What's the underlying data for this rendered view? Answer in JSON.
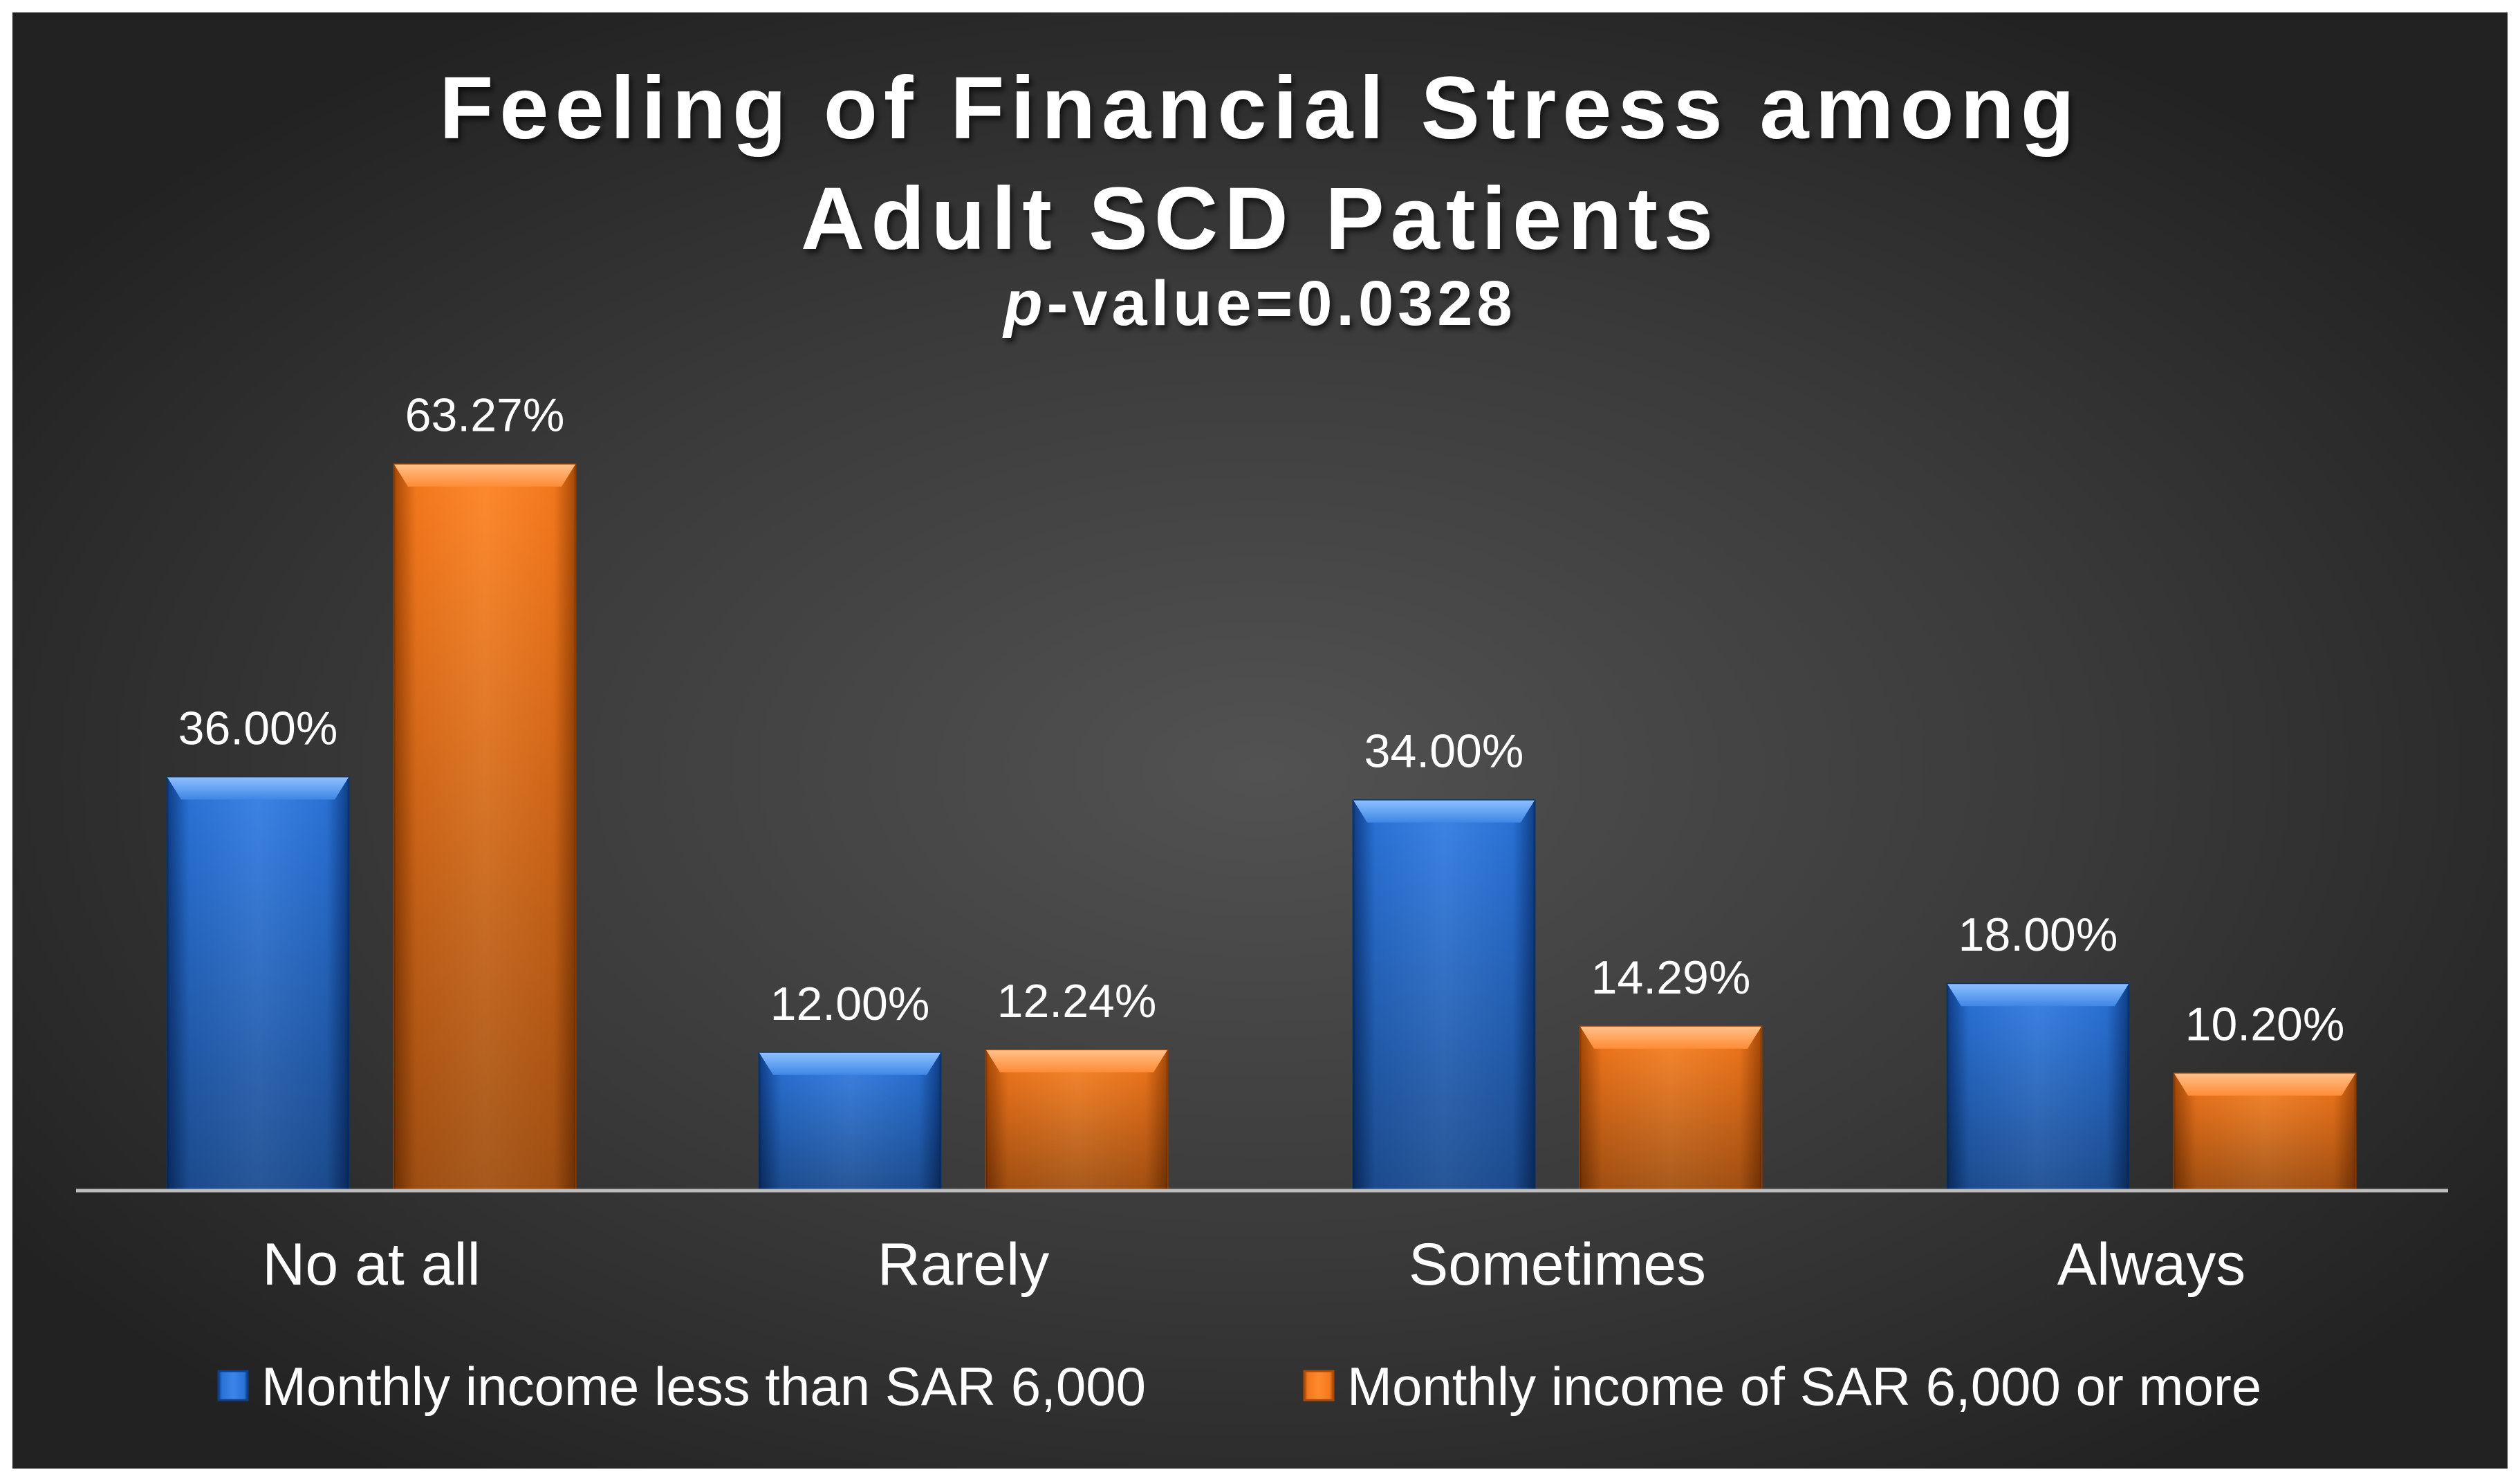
{
  "chart_data": {
    "type": "bar",
    "title_line1": "Feeling of Financial Stress among",
    "title_line2": "Adult SCD Patients",
    "subtitle_italic": "p",
    "subtitle_rest": "-value=0.0328",
    "categories": [
      "No at all",
      "Rarely",
      "Sometimes",
      "Always"
    ],
    "series": [
      {
        "name": "Monthly income  less than SAR 6,000",
        "color": "#1f6fd6",
        "values": [
          36.0,
          12.0,
          34.0,
          18.0
        ],
        "labels": [
          "36.00%",
          "12.00%",
          "34.00%",
          "18.00%"
        ]
      },
      {
        "name": "Monthly income of SAR 6,000 or more",
        "color": "#f57a1c",
        "values": [
          63.27,
          12.24,
          14.29,
          10.2
        ],
        "labels": [
          "63.27%",
          "12.24%",
          "14.29%",
          "10.20%"
        ]
      }
    ],
    "ylim": [
      0,
      70
    ],
    "grid": false,
    "legend_position": "bottom",
    "background": "dark-radial-gray",
    "xlabel": "",
    "ylabel": ""
  }
}
